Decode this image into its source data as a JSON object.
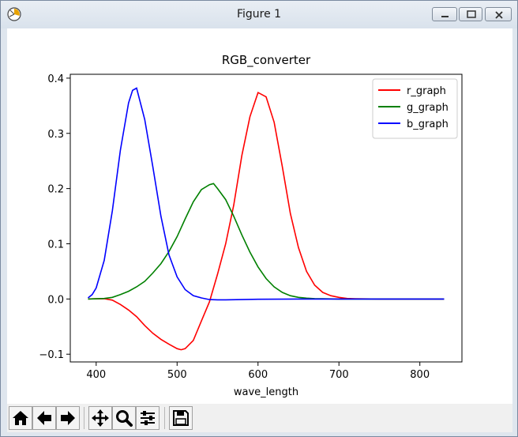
{
  "window": {
    "title": "Figure 1"
  },
  "chart_data": {
    "type": "line",
    "title": "RGB_converter",
    "xlabel": "wave_length",
    "ylabel": "",
    "xlim": [
      368,
      852
    ],
    "ylim": [
      -0.114,
      0.407
    ],
    "xticks": [
      400,
      500,
      600,
      700,
      800
    ],
    "yticks": [
      -0.1,
      0.0,
      0.1,
      0.2,
      0.3,
      0.4
    ],
    "ytick_labels": [
      "−0.1",
      "0.0",
      "0.1",
      "0.2",
      "0.3",
      "0.4"
    ],
    "grid": false,
    "legend_position": "upper-right",
    "series": [
      {
        "name": "r_graph",
        "color": "#ff0000",
        "x": [
          390,
          400,
          410,
          420,
          430,
          440,
          450,
          460,
          470,
          480,
          490,
          500,
          505,
          510,
          520,
          530,
          540,
          550,
          560,
          570,
          580,
          590,
          600,
          610,
          620,
          630,
          640,
          650,
          660,
          670,
          680,
          690,
          700,
          710,
          720,
          730,
          740,
          750,
          760,
          780,
          800,
          830
        ],
        "y": [
          0.0001,
          0.0003,
          0.0005,
          -0.002,
          -0.01,
          -0.02,
          -0.032,
          -0.048,
          -0.062,
          -0.073,
          -0.082,
          -0.09,
          -0.092,
          -0.09,
          -0.075,
          -0.04,
          -0.005,
          0.045,
          0.1,
          0.17,
          0.26,
          0.33,
          0.374,
          0.366,
          0.32,
          0.24,
          0.155,
          0.093,
          0.05,
          0.025,
          0.012,
          0.006,
          0.003,
          0.001,
          0.0005,
          0.0002,
          0.0001,
          0,
          0,
          0,
          0,
          0
        ]
      },
      {
        "name": "g_graph",
        "color": "#008000",
        "x": [
          390,
          400,
          410,
          420,
          430,
          440,
          450,
          460,
          470,
          480,
          490,
          500,
          510,
          520,
          530,
          540,
          545,
          550,
          560,
          570,
          580,
          590,
          600,
          610,
          620,
          630,
          640,
          650,
          660,
          670,
          680,
          700,
          720,
          740,
          780,
          830
        ],
        "y": [
          0,
          0.0003,
          0.0009,
          0.003,
          0.008,
          0.014,
          0.022,
          0.032,
          0.047,
          0.064,
          0.086,
          0.113,
          0.145,
          0.176,
          0.198,
          0.207,
          0.209,
          0.2,
          0.18,
          0.15,
          0.116,
          0.085,
          0.058,
          0.037,
          0.022,
          0.012,
          0.006,
          0.003,
          0.0015,
          0.0007,
          0.0003,
          0,
          0,
          0,
          0,
          0
        ]
      },
      {
        "name": "b_graph",
        "color": "#0000ff",
        "x": [
          390,
          395,
          400,
          410,
          420,
          430,
          440,
          445,
          450,
          460,
          470,
          480,
          490,
          500,
          510,
          520,
          530,
          540,
          550,
          560,
          580,
          600,
          650,
          700,
          750,
          830
        ],
        "y": [
          0.002,
          0.008,
          0.02,
          0.07,
          0.16,
          0.27,
          0.355,
          0.378,
          0.382,
          0.325,
          0.24,
          0.15,
          0.08,
          0.04,
          0.017,
          0.006,
          0.002,
          -0.001,
          -0.0015,
          -0.0015,
          -0.001,
          -0.0005,
          0,
          0,
          0,
          0
        ]
      }
    ]
  }
}
